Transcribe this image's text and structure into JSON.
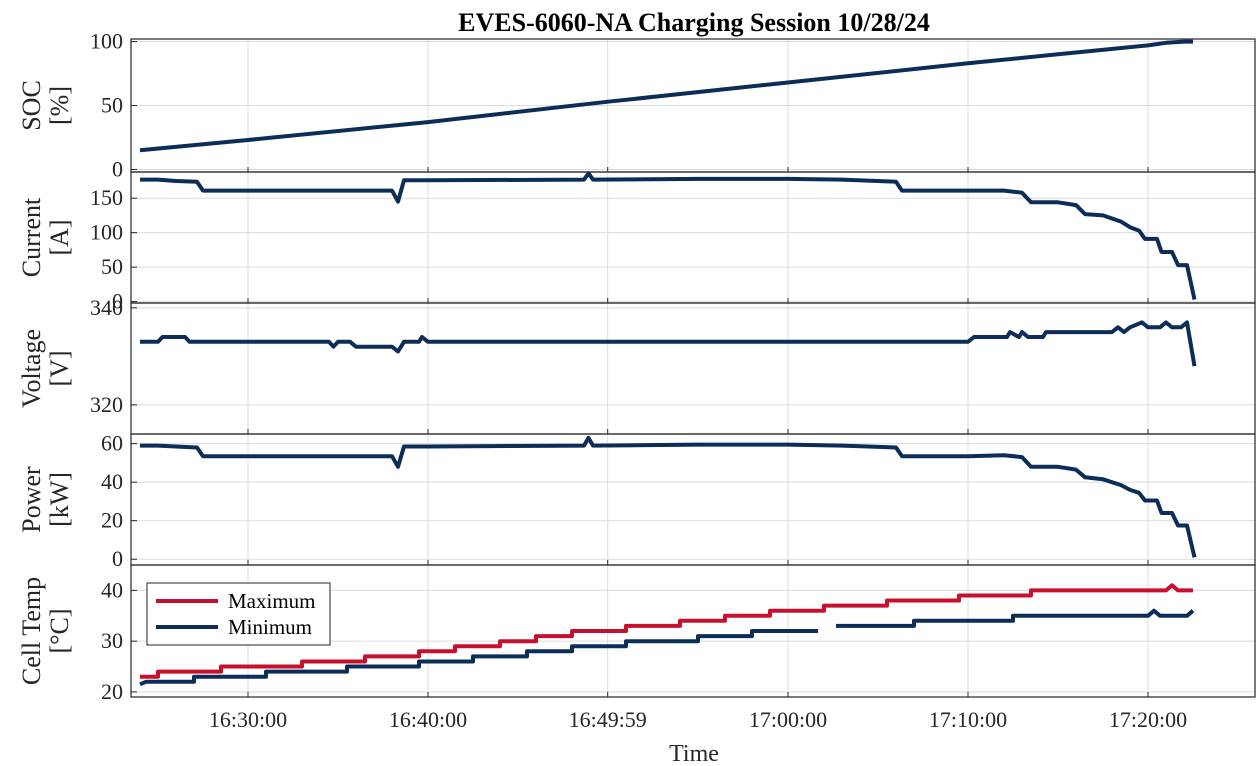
{
  "chart_data": {
    "type": "line",
    "title": "EVES-6060-NA Charging Session 10/28/24",
    "xlabel": "Time",
    "x_range": [
      "16:23:30",
      "17:26:00"
    ],
    "x_ticks": [
      {
        "t": "16:30:00",
        "label": "16:30:00"
      },
      {
        "t": "16:40:00",
        "label": "16:40:00"
      },
      {
        "t": "16:49:59",
        "label": "16:49:59"
      },
      {
        "t": "17:00:00",
        "label": "17:00:00"
      },
      {
        "t": "17:10:00",
        "label": "17:10:00"
      },
      {
        "t": "17:20:00",
        "label": "17:20:00"
      }
    ],
    "grid": true,
    "colors": {
      "maximum": "#c8102e",
      "minimum": "#0b2d57"
    },
    "panels": [
      {
        "id": "soc",
        "ylabel": [
          "SOC",
          "[%]"
        ],
        "ylim": [
          -2,
          102
        ],
        "yticks": [
          0,
          50,
          100
        ],
        "series": [
          {
            "color": "#0b2d57",
            "segments": [
              [
                [
                  "16:24:00",
                  15
                ],
                [
                  "16:30:00",
                  23
                ],
                [
                  "16:40:00",
                  37
                ],
                [
                  "16:50:00",
                  53
                ],
                [
                  "17:00:00",
                  68
                ],
                [
                  "17:10:00",
                  83
                ],
                [
                  "17:15:00",
                  90
                ],
                [
                  "17:20:00",
                  97
                ],
                [
                  "17:21:00",
                  99
                ],
                [
                  "17:22:00",
                  100
                ],
                [
                  "17:22:30",
                  100
                ]
              ]
            ]
          }
        ]
      },
      {
        "id": "current",
        "ylabel": [
          "Current",
          "[A]"
        ],
        "ylim": [
          -2,
          188
        ],
        "yticks": [
          0,
          50,
          100,
          150
        ],
        "series": [
          {
            "color": "#0b2d57",
            "segments": [
              [
                [
                  "16:24:00",
                  177
                ],
                [
                  "16:25:00",
                  177
                ],
                [
                  "16:26:00",
                  175
                ],
                [
                  "16:27:10",
                  174
                ],
                [
                  "16:27:30",
                  161
                ],
                [
                  "16:38:00",
                  161
                ],
                [
                  "16:38:20",
                  145
                ],
                [
                  "16:38:40",
                  176
                ],
                [
                  "16:40:00",
                  176
                ],
                [
                  "16:48:40",
                  177
                ],
                [
                  "16:48:55",
                  186
                ],
                [
                  "16:49:10",
                  177
                ],
                [
                  "16:55:00",
                  178
                ],
                [
                  "17:00:00",
                  178
                ],
                [
                  "17:03:00",
                  177
                ],
                [
                  "17:06:00",
                  174
                ],
                [
                  "17:06:20",
                  161
                ],
                [
                  "17:10:00",
                  161
                ],
                [
                  "17:12:00",
                  161
                ],
                [
                  "17:13:00",
                  158
                ],
                [
                  "17:13:30",
                  144
                ],
                [
                  "17:15:00",
                  144
                ],
                [
                  "17:16:00",
                  140
                ],
                [
                  "17:16:30",
                  127
                ],
                [
                  "17:17:30",
                  125
                ],
                [
                  "17:18:30",
                  116
                ],
                [
                  "17:19:00",
                  108
                ],
                [
                  "17:19:30",
                  103
                ],
                [
                  "17:19:50",
                  91
                ],
                [
                  "17:20:30",
                  91
                ],
                [
                  "17:20:45",
                  72
                ],
                [
                  "17:21:20",
                  72
                ],
                [
                  "17:21:40",
                  53
                ],
                [
                  "17:22:10",
                  53
                ],
                [
                  "17:22:35",
                  3
                ]
              ]
            ]
          }
        ]
      },
      {
        "id": "voltage",
        "ylabel": [
          "Voltage",
          "[V]"
        ],
        "ylim": [
          314,
          341
        ],
        "yticks": [
          320,
          340
        ],
        "series": [
          {
            "color": "#0b2d57",
            "segments": [
              [
                [
                  "16:24:00",
                  333
                ],
                [
                  "16:25:00",
                  333
                ],
                [
                  "16:25:15",
                  334
                ],
                [
                  "16:26:30",
                  334
                ],
                [
                  "16:26:45",
                  333
                ],
                [
                  "16:34:30",
                  333
                ],
                [
                  "16:34:45",
                  332
                ],
                [
                  "16:35:00",
                  333
                ],
                [
                  "16:35:40",
                  333
                ],
                [
                  "16:36:00",
                  332
                ],
                [
                  "16:38:00",
                  332
                ],
                [
                  "16:38:20",
                  331
                ],
                [
                  "16:38:40",
                  333
                ],
                [
                  "16:39:30",
                  333
                ],
                [
                  "16:39:40",
                  334
                ],
                [
                  "16:40:00",
                  333
                ],
                [
                  "17:10:00",
                  333
                ],
                [
                  "17:10:20",
                  334
                ],
                [
                  "17:12:10",
                  334
                ],
                [
                  "17:12:20",
                  335
                ],
                [
                  "17:12:50",
                  334
                ],
                [
                  "17:13:00",
                  335
                ],
                [
                  "17:13:20",
                  334
                ],
                [
                  "17:14:10",
                  334
                ],
                [
                  "17:14:20",
                  335
                ],
                [
                  "17:18:00",
                  335
                ],
                [
                  "17:18:20",
                  336
                ],
                [
                  "17:18:40",
                  335
                ],
                [
                  "17:19:00",
                  336
                ],
                [
                  "17:19:40",
                  337
                ],
                [
                  "17:20:00",
                  336
                ],
                [
                  "17:20:40",
                  336
                ],
                [
                  "17:21:00",
                  337
                ],
                [
                  "17:21:20",
                  336
                ],
                [
                  "17:21:50",
                  336
                ],
                [
                  "17:22:10",
                  337
                ],
                [
                  "17:22:35",
                  328
                ]
              ]
            ]
          }
        ]
      },
      {
        "id": "power",
        "ylabel": [
          "Power",
          "[kW]"
        ],
        "ylim": [
          -3,
          65
        ],
        "yticks": [
          0,
          20,
          40,
          60
        ],
        "series": [
          {
            "color": "#0b2d57",
            "segments": [
              [
                [
                  "16:24:00",
                  59
                ],
                [
                  "16:25:00",
                  59
                ],
                [
                  "16:26:00",
                  58.5
                ],
                [
                  "16:27:10",
                  58
                ],
                [
                  "16:27:30",
                  53.5
                ],
                [
                  "16:38:00",
                  53.5
                ],
                [
                  "16:38:20",
                  48
                ],
                [
                  "16:38:40",
                  58.5
                ],
                [
                  "16:40:00",
                  58.5
                ],
                [
                  "16:48:40",
                  59
                ],
                [
                  "16:48:55",
                  63
                ],
                [
                  "16:49:10",
                  59
                ],
                [
                  "16:55:00",
                  59.5
                ],
                [
                  "17:00:00",
                  59.5
                ],
                [
                  "17:03:00",
                  59
                ],
                [
                  "17:06:00",
                  58
                ],
                [
                  "17:06:20",
                  53.5
                ],
                [
                  "17:10:00",
                  53.5
                ],
                [
                  "17:12:00",
                  54
                ],
                [
                  "17:13:00",
                  53
                ],
                [
                  "17:13:30",
                  48
                ],
                [
                  "17:15:00",
                  48
                ],
                [
                  "17:16:00",
                  46.5
                ],
                [
                  "17:16:30",
                  42.5
                ],
                [
                  "17:17:30",
                  41.5
                ],
                [
                  "17:18:30",
                  38.5
                ],
                [
                  "17:19:00",
                  36
                ],
                [
                  "17:19:30",
                  34.5
                ],
                [
                  "17:19:50",
                  30.5
                ],
                [
                  "17:20:30",
                  30.5
                ],
                [
                  "17:20:45",
                  24
                ],
                [
                  "17:21:20",
                  24
                ],
                [
                  "17:21:40",
                  17.5
                ],
                [
                  "17:22:10",
                  17.5
                ],
                [
                  "17:22:35",
                  1
                ]
              ]
            ]
          }
        ]
      },
      {
        "id": "celltemp",
        "ylabel": [
          "Cell Temp",
          "[°C]"
        ],
        "ylim": [
          19,
          45
        ],
        "yticks": [
          20,
          30,
          40
        ],
        "legend": {
          "position": "top-left",
          "entries": [
            "Maximum",
            "Minimum"
          ]
        },
        "series": [
          {
            "name": "Maximum",
            "color": "#c8102e",
            "segments": [
              [
                [
                  "16:24:00",
                  23
                ],
                [
                  "16:25:00",
                  23
                ],
                [
                  "16:25:00",
                  24
                ],
                [
                  "16:28:30",
                  24
                ],
                [
                  "16:28:30",
                  25
                ],
                [
                  "16:33:00",
                  25
                ],
                [
                  "16:33:00",
                  26
                ],
                [
                  "16:36:30",
                  26
                ],
                [
                  "16:36:30",
                  27
                ],
                [
                  "16:39:30",
                  27
                ],
                [
                  "16:39:30",
                  28
                ],
                [
                  "16:41:30",
                  28
                ],
                [
                  "16:41:30",
                  29
                ],
                [
                  "16:44:00",
                  29
                ],
                [
                  "16:44:00",
                  30
                ],
                [
                  "16:46:00",
                  30
                ],
                [
                  "16:46:00",
                  31
                ],
                [
                  "16:48:00",
                  31
                ],
                [
                  "16:48:00",
                  32
                ],
                [
                  "16:51:00",
                  32
                ],
                [
                  "16:51:00",
                  33
                ],
                [
                  "16:54:00",
                  33
                ],
                [
                  "16:54:00",
                  34
                ],
                [
                  "16:56:30",
                  34
                ],
                [
                  "16:56:30",
                  35
                ],
                [
                  "16:59:00",
                  35
                ],
                [
                  "16:59:00",
                  36
                ],
                [
                  "17:02:00",
                  36
                ],
                [
                  "17:02:00",
                  37
                ],
                [
                  "17:05:30",
                  37
                ],
                [
                  "17:05:30",
                  38
                ],
                [
                  "17:09:30",
                  38
                ],
                [
                  "17:09:30",
                  39
                ],
                [
                  "17:13:30",
                  39
                ],
                [
                  "17:13:30",
                  40
                ],
                [
                  "17:21:00",
                  40
                ],
                [
                  "17:21:20",
                  41
                ],
                [
                  "17:21:40",
                  40
                ],
                [
                  "17:22:30",
                  40
                ]
              ]
            ]
          },
          {
            "name": "Minimum",
            "color": "#0b2d57",
            "segments": [
              [
                [
                  "16:24:00",
                  21.5
                ],
                [
                  "16:24:20",
                  22
                ],
                [
                  "16:27:00",
                  22
                ],
                [
                  "16:27:00",
                  23
                ],
                [
                  "16:31:00",
                  23
                ],
                [
                  "16:31:00",
                  24
                ],
                [
                  "16:35:30",
                  24
                ],
                [
                  "16:35:30",
                  25
                ],
                [
                  "16:39:30",
                  25
                ],
                [
                  "16:39:30",
                  26
                ],
                [
                  "16:42:30",
                  26
                ],
                [
                  "16:42:30",
                  27
                ],
                [
                  "16:45:30",
                  27
                ],
                [
                  "16:45:30",
                  28
                ],
                [
                  "16:48:00",
                  28
                ],
                [
                  "16:48:00",
                  29
                ],
                [
                  "16:51:00",
                  29
                ],
                [
                  "16:51:00",
                  30
                ],
                [
                  "16:55:00",
                  30
                ],
                [
                  "16:55:00",
                  31
                ],
                [
                  "16:58:00",
                  31
                ],
                [
                  "16:58:00",
                  32
                ],
                [
                  "17:01:40",
                  32
                ]
              ],
              [
                [
                  "17:02:40",
                  33
                ],
                [
                  "17:07:00",
                  33
                ],
                [
                  "17:07:00",
                  34
                ],
                [
                  "17:12:30",
                  34
                ],
                [
                  "17:12:30",
                  35
                ],
                [
                  "17:20:00",
                  35
                ],
                [
                  "17:20:20",
                  36
                ],
                [
                  "17:20:40",
                  35
                ],
                [
                  "17:22:10",
                  35
                ],
                [
                  "17:22:30",
                  36
                ]
              ]
            ]
          }
        ]
      }
    ]
  }
}
